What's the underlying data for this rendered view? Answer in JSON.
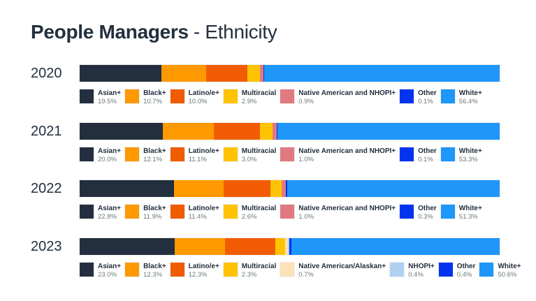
{
  "title": {
    "bold": "People Managers",
    "rest": "- Ethnicity"
  },
  "colors": {
    "navy": "#232F3E",
    "orange": "#FF9902",
    "dark_orange": "#F15C03",
    "yellow": "#FFC303",
    "salmon": "#E17A80",
    "cream": "#FAE3B7",
    "pale_blue": "#AFD0F1",
    "blue": "#0433F0",
    "sky_blue": "#1E96FA",
    "text_dark": "#232F3E",
    "text_gray": "#6C7778"
  },
  "chart_data": {
    "type": "bar",
    "orientation": "horizontal-stacked",
    "title": "People Managers - Ethnicity",
    "legend_position": "below-each-bar",
    "rows": [
      {
        "year": "2020",
        "segments": [
          {
            "label": "Asian+",
            "value": 19.5,
            "color": "#232F3E"
          },
          {
            "label": "Black+",
            "value": 10.7,
            "color": "#FF9902"
          },
          {
            "label": "Latino/e+",
            "value": 10.0,
            "color": "#F15C03"
          },
          {
            "label": "Multiracial",
            "value": 2.9,
            "color": "#FFC303"
          },
          {
            "label": "Native American and NHOPI+",
            "value": 0.9,
            "color": "#E17A80"
          },
          {
            "label": "Other",
            "value": 0.1,
            "color": "#0433F0"
          },
          {
            "label": "White+",
            "value": 56.4,
            "color": "#1E96FA"
          }
        ]
      },
      {
        "year": "2021",
        "segments": [
          {
            "label": "Asian+",
            "value": 20.0,
            "color": "#232F3E"
          },
          {
            "label": "Black+",
            "value": 12.1,
            "color": "#FF9902"
          },
          {
            "label": "Latino/e+",
            "value": 11.1,
            "color": "#F15C03"
          },
          {
            "label": "Multiracial",
            "value": 3.0,
            "color": "#FFC303"
          },
          {
            "label": "Native American and NHOPI+",
            "value": 1.0,
            "color": "#E17A80"
          },
          {
            "label": "Other",
            "value": 0.1,
            "color": "#0433F0"
          },
          {
            "label": "White+",
            "value": 53.3,
            "color": "#1E96FA"
          }
        ]
      },
      {
        "year": "2022",
        "segments": [
          {
            "label": "Asian+",
            "value": 22.8,
            "color": "#232F3E"
          },
          {
            "label": "Black+",
            "value": 11.9,
            "color": "#FF9902"
          },
          {
            "label": "Latino/e+",
            "value": 11.4,
            "color": "#F15C03"
          },
          {
            "label": "Multiracial",
            "value": 2.6,
            "color": "#FFC303"
          },
          {
            "label": "Native American and NHOPI+",
            "value": 1.0,
            "color": "#E17A80"
          },
          {
            "label": "Other",
            "value": 0.3,
            "color": "#0433F0"
          },
          {
            "label": "White+",
            "value": 51.3,
            "color": "#1E96FA"
          }
        ]
      },
      {
        "year": "2023",
        "segments": [
          {
            "label": "Asian+",
            "value": 23.0,
            "color": "#232F3E"
          },
          {
            "label": "Black+",
            "value": 12.3,
            "color": "#FF9902"
          },
          {
            "label": "Latino/e+",
            "value": 12.3,
            "color": "#F15C03"
          },
          {
            "label": "Multiracial",
            "value": 2.3,
            "color": "#FFC303"
          },
          {
            "label": "Native American/Alaskan+",
            "value": 0.7,
            "color": "#FAE3B7"
          },
          {
            "label": "NHOPI+",
            "value": 0.4,
            "color": "#AFD0F1"
          },
          {
            "label": "Other",
            "value": 0.4,
            "color": "#0433F0"
          },
          {
            "label": "White+",
            "value": 50.6,
            "color": "#1E96FA"
          }
        ]
      }
    ]
  }
}
